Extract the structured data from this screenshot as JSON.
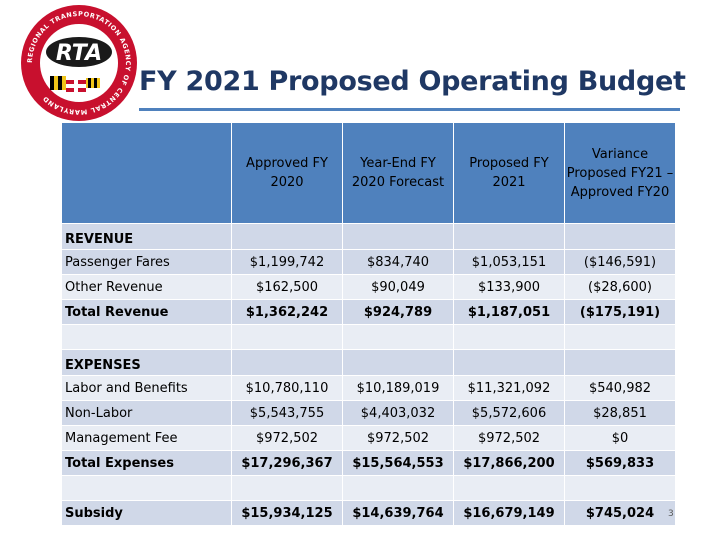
{
  "slide": {
    "title": "FY 2021 Proposed Operating Budget",
    "page_number": "3"
  },
  "logo": {
    "center_text": "RTA",
    "ring_text": "REGIONAL TRANSPORTATION AGENCY OF CENTRAL MARYLAND"
  },
  "table": {
    "headers": [
      "",
      "Approved FY 2020",
      "Year-End FY 2020 Forecast",
      "Proposed FY 2021",
      "Variance Proposed FY21 – Approved FY20"
    ],
    "rows": [
      {
        "label": "REVENUE",
        "values": [
          "",
          "",
          "",
          ""
        ]
      },
      {
        "label": "Passenger Fares",
        "values": [
          "$1,199,742",
          "$834,740",
          "$1,053,151",
          "($146,591)"
        ]
      },
      {
        "label": "Other Revenue",
        "values": [
          "$162,500",
          "$90,049",
          "$133,900",
          "($28,600)"
        ]
      },
      {
        "label": "Total Revenue",
        "values": [
          "$1,362,242",
          "$924,789",
          "$1,187,051",
          "($175,191)"
        ]
      },
      {
        "label": "",
        "values": [
          "",
          "",
          "",
          ""
        ]
      },
      {
        "label": "EXPENSES",
        "values": [
          "",
          "",
          "",
          ""
        ]
      },
      {
        "label": "Labor and Benefits",
        "values": [
          "$10,780,110",
          "$10,189,019",
          "$11,321,092",
          "$540,982"
        ]
      },
      {
        "label": "Non-Labor",
        "values": [
          "$5,543,755",
          "$4,403,032",
          "$5,572,606",
          "$28,851"
        ]
      },
      {
        "label": "Management Fee",
        "values": [
          "$972,502",
          "$972,502",
          "$972,502",
          "$0"
        ]
      },
      {
        "label": "Total Expenses",
        "values": [
          "$17,296,367",
          "$15,564,553",
          "$17,866,200",
          "$569,833"
        ]
      },
      {
        "label": "",
        "values": [
          "",
          "",
          "",
          ""
        ]
      },
      {
        "label": "Subsidy",
        "values": [
          "$15,934,125",
          "$14,639,764",
          "$16,679,149",
          "$745,024"
        ]
      }
    ]
  },
  "colors": {
    "header_fill": "#4f81bd",
    "row_fill": "#d0d8e8",
    "row_alt_fill": "#e9edf4",
    "title_color": "#1f3864"
  }
}
